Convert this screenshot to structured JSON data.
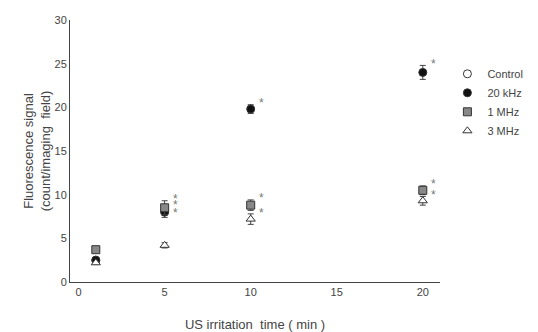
{
  "chart_data": {
    "type": "scatter",
    "xlabel": "US irritation  time ( min )",
    "ylabel": "Fluorescence signal\n(count/imaging  field)",
    "xlim": [
      -0.5,
      21
    ],
    "ylim": [
      0,
      30
    ],
    "xticks": [
      0,
      5,
      10,
      15,
      20
    ],
    "yticks": [
      0,
      5,
      10,
      15,
      20,
      25,
      30
    ],
    "grid": false,
    "legend": "right",
    "series": [
      {
        "name": "Control",
        "x": [
          1
        ],
        "values": [
          2.5
        ],
        "yerr": [
          0.15
        ],
        "color": "white",
        "marker": "circle"
      },
      {
        "name": "20 kHz",
        "x": [
          1,
          5,
          10,
          20
        ],
        "values": [
          2.5,
          8.0,
          19.8,
          24.0
        ],
        "yerr": [
          0.15,
          0.6,
          0.5,
          0.8
        ],
        "color": "#111111",
        "marker": "circle"
      },
      {
        "name": "1 MHz",
        "x": [
          1,
          5,
          10,
          20
        ],
        "values": [
          3.7,
          8.5,
          8.8,
          10.5
        ],
        "yerr": [
          0.25,
          0.8,
          0.6,
          0.5
        ],
        "color": "#888888",
        "marker": "square"
      },
      {
        "name": "3 MHz",
        "x": [
          1,
          5,
          10,
          20
        ],
        "values": [
          2.2,
          4.2,
          7.2,
          9.3
        ],
        "yerr": [
          0.15,
          0.3,
          0.6,
          0.5
        ],
        "color": "white",
        "marker": "triangle-up"
      }
    ],
    "annotations": [
      {
        "text": "*",
        "x": 5.35,
        "y": 8.8
      },
      {
        "text": "*",
        "x": 10.35,
        "y": 20.5
      },
      {
        "text": "*",
        "x": 20.35,
        "y": 25.0
      },
      {
        "text": "*",
        "x": 5.35,
        "y": 9.5
      },
      {
        "text": "*",
        "x": 10.35,
        "y": 9.6
      },
      {
        "text": "*",
        "x": 20.35,
        "y": 11.2
      },
      {
        "text": "*",
        "x": 5.35,
        "y": 7.9
      },
      {
        "text": "*",
        "x": 10.35,
        "y": 7.95
      },
      {
        "text": "*",
        "x": 20.35,
        "y": 9.95
      }
    ]
  }
}
